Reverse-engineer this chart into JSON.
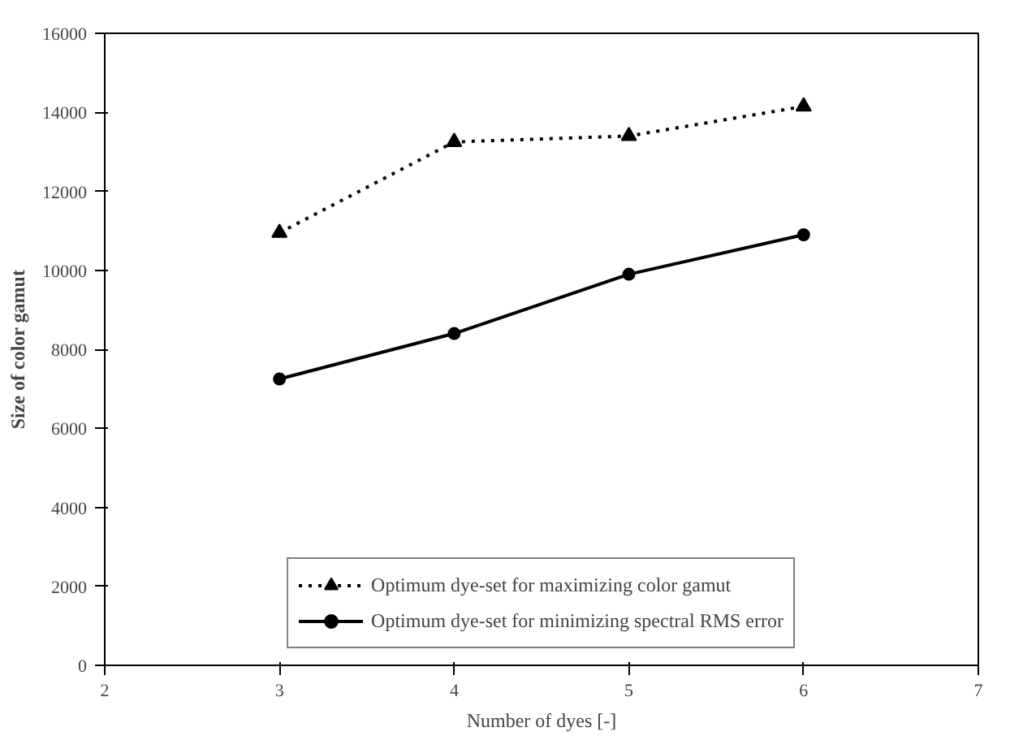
{
  "chart_data": {
    "type": "line",
    "xlabel": "Number of dyes [-]",
    "ylabel": "Size of color gamut",
    "x": [
      3,
      4,
      5,
      6
    ],
    "xlim": [
      2,
      7
    ],
    "xticks": [
      2,
      3,
      4,
      5,
      6,
      7
    ],
    "ylim": [
      0,
      16000
    ],
    "yticks": [
      0,
      2000,
      4000,
      6000,
      8000,
      10000,
      12000,
      14000,
      16000
    ],
    "series": [
      {
        "name": "Optimum dye-set for maximizing color gamut",
        "color": "#000000",
        "values": [
          10950,
          13250,
          13400,
          14150
        ],
        "marker": "triangle",
        "line_style": "dotted"
      },
      {
        "name": "Optimum dye-set for minimizing spectral RMS error",
        "color": "#000000",
        "values": [
          7250,
          8400,
          9900,
          10900
        ],
        "marker": "circle",
        "line_style": "solid"
      }
    ],
    "grid": false,
    "legend": "bottom"
  }
}
